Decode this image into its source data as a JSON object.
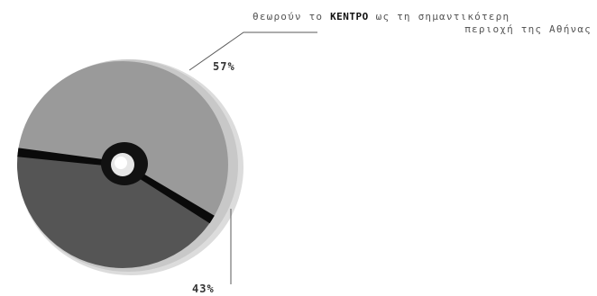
{
  "chart_data": {
    "type": "pie",
    "caption": {
      "prefix": "θεωρούν το",
      "highlight": "ΚΕΝΤΡΟ",
      "suffix": "ως τη σημαντικότερη",
      "line2": "περιοχή της Αθήνας"
    },
    "slices": [
      {
        "label": "57%",
        "value": 57,
        "color": "#9a9a9a"
      },
      {
        "label": "43%",
        "value": 43,
        "color": "#555555"
      }
    ],
    "colors": {
      "rim": "#c8c8c8",
      "rim_shadow": "#dcdcdc",
      "separator": "#0a0a0a",
      "leader": "#5a5a5a"
    }
  }
}
